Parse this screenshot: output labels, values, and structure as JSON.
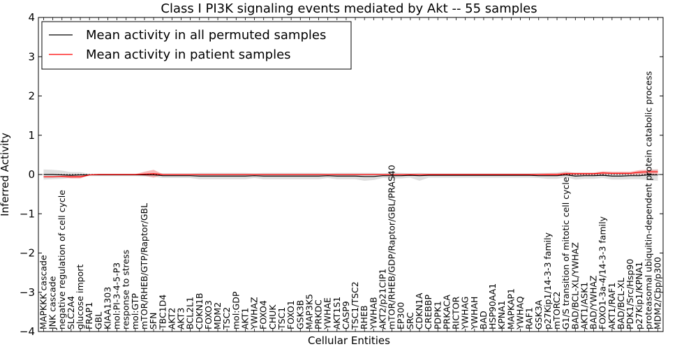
{
  "chart_data": {
    "type": "line",
    "title": "Class I PI3K signaling events mediated by Akt -- 55 samples",
    "xlabel": "Cellular Entities",
    "ylabel": "Inferred Activity",
    "ylim": [
      -4,
      4
    ],
    "yticks": [
      -4,
      -3,
      -2,
      -1,
      0,
      1,
      2,
      3,
      4
    ],
    "ytick_labels": [
      "−4",
      "−3",
      "−2",
      "−1",
      "0",
      "1",
      "2",
      "3",
      "4"
    ],
    "legend_position": "upper-left",
    "colors": {
      "permuted": "#000000",
      "patient": "#ff0000",
      "permuted_band": "#d9d9d9",
      "patient_band": "#f4a0a0"
    },
    "categories": [
      "MAPKKK cascade",
      "JNK cascade",
      "negative regulation of cell cycle",
      "SLC2A4",
      "glucose import",
      "FRAP1",
      "GBL",
      "KIAA1303",
      "mol:PI-3-4-5-P3",
      "response to stress",
      "mol:GTP",
      "mTOR/RHEB/GTP/Raptor/GBL",
      "SFN",
      "TBC1D4",
      "AKT2",
      "AKT3",
      "BCL2L1",
      "CDKN1B",
      "FOXO3",
      "MDM2",
      "TSC2",
      "mol:GDP",
      "AKT1",
      "YWHAZ",
      "FOXO4",
      "CHUK",
      "TSC1",
      "FOXO1",
      "GSK3B",
      "MAP3K5",
      "PRKDC",
      "YWHAE",
      "AKT1S1",
      "CASP9",
      "TSC1/TSC2",
      "RHEB",
      "YWHAB",
      "AKT2/p21CIP1",
      "mTOR/RHEB/GDP/Raptor/GBL/PRAS40",
      "EP300",
      "SRC",
      "CDKN1A",
      "CREBBP",
      "PDPK1",
      "PRKACA",
      "RICTOR",
      "YWHAG",
      "YWHAH",
      "BAD",
      "HSP90AA1",
      "KPNA1",
      "MAPKAP1",
      "YWHAQ",
      "RAF1",
      "GSK3A",
      "p27Kip1/14-3-3 family",
      "mTORC2",
      "G1/S transition of mitotic cell cycle",
      "BAD/BCL-XL/YWHAZ",
      "AKT1/ASK1",
      "BAD/YWHAZ",
      "FOXO1-3a-4/14-3-3 family",
      "AKT1/RAF1",
      "BAD/BCL-XL",
      "PDK1/Src/Hsp90",
      "p27Kip1/KPNA1",
      "proteasomal ubiquitin-dependent protein catabolic process",
      "MDM2/Cbp/p300"
    ],
    "series": [
      {
        "name": "Mean activity in all permuted samples",
        "values": [
          0,
          0,
          -0.01,
          -0.02,
          -0.01,
          -0.01,
          -0.01,
          -0.01,
          -0.01,
          -0.01,
          -0.01,
          -0.01,
          -0.01,
          -0.03,
          -0.03,
          -0.03,
          -0.03,
          -0.04,
          -0.04,
          -0.04,
          -0.04,
          -0.04,
          -0.04,
          -0.03,
          -0.04,
          -0.04,
          -0.04,
          -0.04,
          -0.04,
          -0.04,
          -0.04,
          -0.03,
          -0.04,
          -0.04,
          -0.04,
          -0.05,
          -0.05,
          -0.03,
          -0.03,
          -0.03,
          -0.02,
          -0.03,
          -0.02,
          -0.02,
          -0.02,
          -0.02,
          -0.02,
          -0.02,
          -0.02,
          -0.02,
          -0.02,
          -0.02,
          -0.02,
          -0.02,
          -0.03,
          -0.03,
          -0.03,
          -0.01,
          -0.04,
          -0.03,
          -0.03,
          -0.02,
          -0.04,
          -0.04,
          -0.03,
          -0.03,
          -0.01,
          -0.01
        ],
        "lower": [
          -0.13,
          -0.12,
          -0.11,
          -0.09,
          -0.08,
          -0.04,
          -0.04,
          -0.04,
          -0.04,
          -0.04,
          -0.04,
          -0.05,
          -0.06,
          -0.09,
          -0.09,
          -0.09,
          -0.09,
          -0.12,
          -0.12,
          -0.12,
          -0.12,
          -0.12,
          -0.12,
          -0.09,
          -0.12,
          -0.12,
          -0.12,
          -0.12,
          -0.12,
          -0.12,
          -0.12,
          -0.09,
          -0.12,
          -0.12,
          -0.12,
          -0.16,
          -0.14,
          -0.09,
          -0.1,
          -0.1,
          -0.08,
          -0.16,
          -0.08,
          -0.08,
          -0.08,
          -0.08,
          -0.08,
          -0.08,
          -0.08,
          -0.08,
          -0.08,
          -0.08,
          -0.08,
          -0.08,
          -0.09,
          -0.11,
          -0.11,
          -0.07,
          -0.13,
          -0.11,
          -0.11,
          -0.09,
          -0.13,
          -0.13,
          -0.12,
          -0.12,
          -0.14,
          -0.16
        ],
        "upper": [
          0.13,
          0.12,
          0.1,
          0.06,
          0.06,
          0.02,
          0.02,
          0.02,
          0.02,
          0.02,
          0.02,
          0.03,
          0.04,
          0.03,
          0.03,
          0.03,
          0.03,
          0.04,
          0.04,
          0.04,
          0.04,
          0.04,
          0.04,
          0.03,
          0.04,
          0.04,
          0.04,
          0.04,
          0.04,
          0.04,
          0.04,
          0.03,
          0.04,
          0.04,
          0.04,
          0.04,
          0.04,
          0.03,
          0.05,
          0.04,
          0.03,
          0.04,
          0.03,
          0.03,
          0.03,
          0.03,
          0.03,
          0.03,
          0.03,
          0.03,
          0.03,
          0.03,
          0.03,
          0.03,
          0.04,
          0.04,
          0.05,
          0.08,
          0.04,
          0.04,
          0.04,
          0.04,
          0.05,
          0.05,
          0.05,
          0.06,
          0.12,
          0.14
        ]
      },
      {
        "name": "Mean activity in patient samples",
        "values": [
          -0.06,
          -0.06,
          -0.05,
          -0.06,
          -0.06,
          -0.01,
          0,
          0,
          0,
          0,
          0,
          0.01,
          0.02,
          0,
          0,
          0,
          0,
          0,
          0,
          0,
          0,
          0,
          0,
          0,
          0,
          0,
          0,
          0,
          0,
          0,
          0,
          0,
          0,
          0,
          0,
          0,
          0,
          0,
          0,
          0,
          0,
          0,
          0,
          0,
          0,
          0,
          0,
          0,
          0,
          0,
          0,
          0,
          0,
          0,
          0,
          0,
          0,
          0.02,
          0.02,
          0.02,
          0.02,
          0.04,
          0.03,
          0.03,
          0.03,
          0.06,
          0.07,
          0.07
        ],
        "lower": [
          -0.06,
          -0.06,
          -0.07,
          -0.1,
          -0.1,
          -0.02,
          -0.01,
          -0.01,
          -0.01,
          -0.01,
          -0.01,
          -0.03,
          -0.08,
          -0.01,
          -0.01,
          -0.01,
          -0.01,
          -0.01,
          -0.01,
          -0.01,
          -0.01,
          -0.01,
          -0.01,
          -0.01,
          -0.01,
          -0.01,
          -0.01,
          -0.01,
          -0.01,
          -0.01,
          -0.01,
          -0.01,
          -0.01,
          -0.01,
          -0.01,
          -0.01,
          -0.01,
          -0.01,
          -0.01,
          -0.01,
          -0.01,
          -0.01,
          -0.01,
          -0.01,
          -0.01,
          -0.01,
          -0.01,
          -0.01,
          -0.01,
          -0.01,
          -0.01,
          -0.01,
          -0.01,
          -0.01,
          -0.01,
          -0.02,
          -0.02,
          -0.02,
          -0.01,
          -0.01,
          -0.01,
          0,
          0,
          0,
          -0.01,
          0,
          0.01,
          0.01
        ],
        "upper": [
          -0.05,
          -0.05,
          -0.03,
          -0.02,
          -0.02,
          0,
          0.01,
          0.01,
          0.01,
          0.01,
          0.01,
          0.07,
          0.12,
          0.01,
          0.01,
          0.01,
          0.01,
          0.01,
          0.01,
          0.01,
          0.01,
          0.01,
          0.01,
          0.01,
          0.01,
          0.01,
          0.01,
          0.01,
          0.01,
          0.01,
          0.01,
          0.01,
          0.01,
          0.01,
          0.01,
          0.01,
          0.01,
          0.01,
          0.01,
          0.01,
          0.01,
          0.01,
          0.01,
          0.01,
          0.01,
          0.01,
          0.01,
          0.01,
          0.01,
          0.01,
          0.01,
          0.01,
          0.01,
          0.01,
          0.02,
          0.03,
          0.03,
          0.06,
          0.05,
          0.05,
          0.05,
          0.08,
          0.07,
          0.07,
          0.07,
          0.11,
          0.12,
          0.12
        ]
      }
    ]
  }
}
